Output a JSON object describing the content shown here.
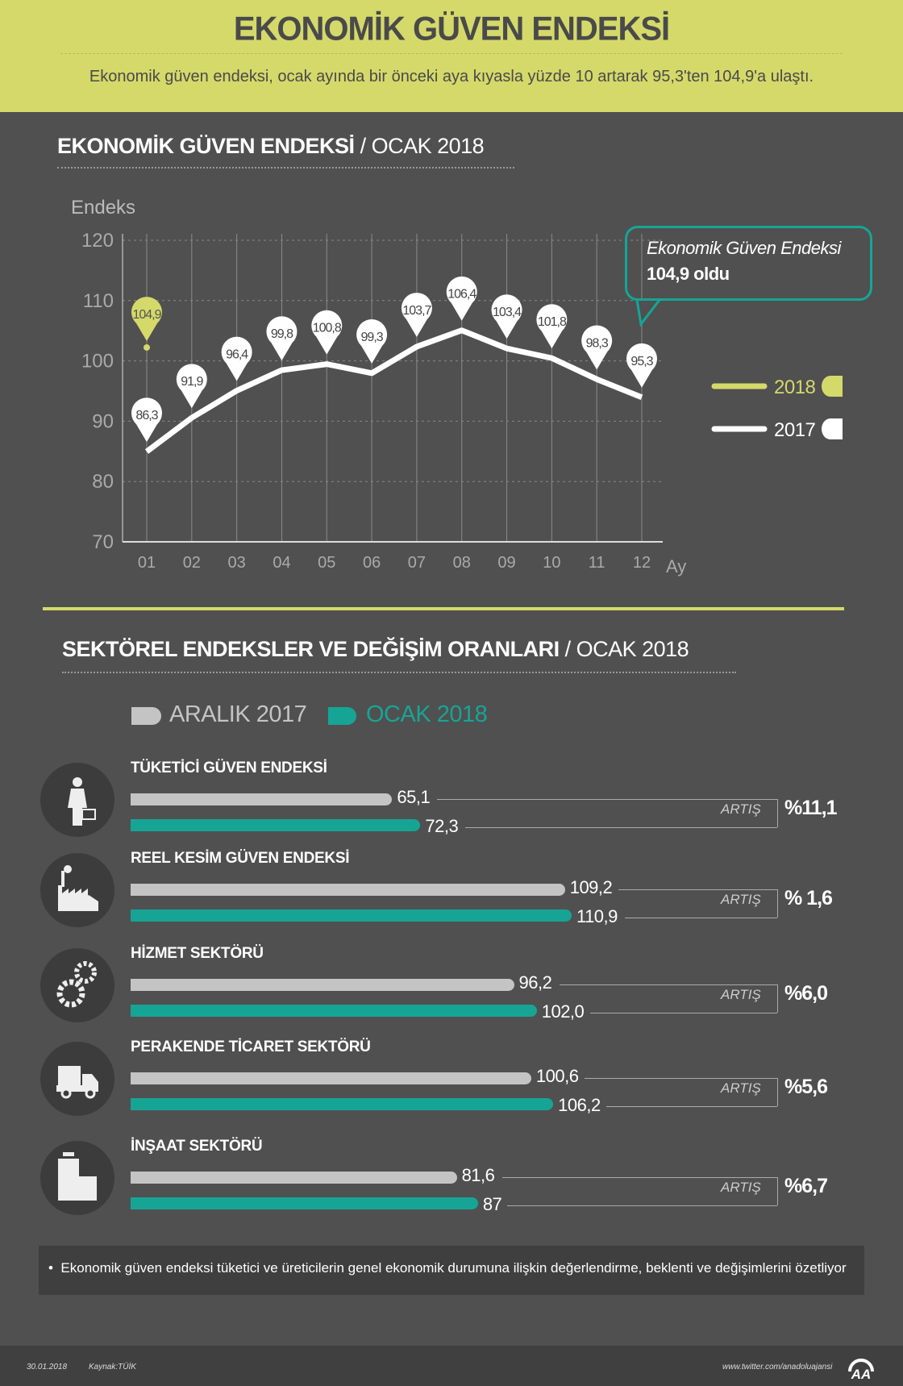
{
  "header": {
    "title": "EKONOMİK GÜVEN ENDEKSİ",
    "subtitle": "Ekonomik güven endeksi, ocak ayında bir önceki aya kıyasla yüzde 10 artarak 95,3'ten 104,9'a ulaştı."
  },
  "section1": {
    "title_bold": "EKONOMİK GÜVEN ENDEKSİ",
    "title_light": "/ OCAK 2018"
  },
  "callout": {
    "line1": "Ekonomik Güven Endeksi",
    "line2": "104,9 oldu"
  },
  "chart_data": [
    {
      "type": "line",
      "ylabel": "Endeks",
      "xlabel": "Ay",
      "ylim": [
        70,
        120
      ],
      "yticks": [
        "120",
        "110",
        "100",
        "90",
        "80",
        "70"
      ],
      "categories": [
        "01",
        "02",
        "03",
        "04",
        "05",
        "06",
        "07",
        "08",
        "09",
        "10",
        "11",
        "12"
      ],
      "series": [
        {
          "name": "2018",
          "color": "#d4d96a",
          "values": [
            104.9,
            null,
            null,
            null,
            null,
            null,
            null,
            null,
            null,
            null,
            null,
            null
          ],
          "labels": [
            "104,9"
          ]
        },
        {
          "name": "2017",
          "color": "#ffffff",
          "values": [
            86.3,
            91.9,
            96.4,
            99.8,
            100.8,
            99.3,
            103.7,
            106.4,
            103.4,
            101.8,
            98.3,
            95.3
          ],
          "labels": [
            "86,3",
            "91,9",
            "96,4",
            "99,8",
            "100,8",
            "99,3",
            "103,7",
            "106,4",
            "103,4",
            "101,8",
            "98,3",
            "95,3"
          ]
        }
      ],
      "grid": true,
      "legend": "right"
    },
    {
      "type": "bar",
      "orientation": "horizontal",
      "title_bold": "SEKTÖREL ENDEKSLER VE DEĞİŞİM ORANLARI",
      "title_light": "/ OCAK 2018",
      "series": [
        {
          "name": "ARALIK 2017",
          "color": "#c4c4c4"
        },
        {
          "name": "OCAK 2018",
          "color": "#16a595"
        }
      ],
      "rows": [
        {
          "name": "TÜKETİCİ GÜVEN ENDEKSİ",
          "icon": "woman-basket-icon",
          "dec": 65.1,
          "jan": 72.3,
          "dec_label": "65,1",
          "jan_label": "72,3",
          "change_label": "ARTIŞ",
          "change": "%11,1"
        },
        {
          "name": "REEL KESİM GÜVEN ENDEKSİ",
          "icon": "factory-icon",
          "dec": 109.2,
          "jan": 110.9,
          "dec_label": "109,2",
          "jan_label": "110,9",
          "change_label": "ARTIŞ",
          "change": "% 1,6"
        },
        {
          "name": "HİZMET SEKTÖRÜ",
          "icon": "gears-icon",
          "dec": 96.2,
          "jan": 102.0,
          "dec_label": "96,2",
          "jan_label": "102,0",
          "change_label": "ARTIŞ",
          "change": "%6,0"
        },
        {
          "name": "PERAKENDE TİCARET SEKTÖRÜ",
          "icon": "truck-icon",
          "dec": 100.6,
          "jan": 106.2,
          "dec_label": "100,6",
          "jan_label": "106,2",
          "change_label": "ARTIŞ",
          "change": "%5,6"
        },
        {
          "name": "İNŞAAT SEKTÖRÜ",
          "icon": "buildings-icon",
          "dec": 81.6,
          "jan": 87,
          "dec_label": "81,6",
          "jan_label": "87",
          "change_label": "ARTIŞ",
          "change": "%6,7"
        }
      ]
    }
  ],
  "note": "Ekonomik güven endeksi tüketici ve üreticilerin genel ekonomik durumuna ilişkin değerlendirme, beklenti ve değişimlerini özetliyor",
  "footer": {
    "date": "30.01.2018",
    "source": "Kaynak:TÜİK",
    "url": "www.twitter.com/anadoluajansi",
    "logo": "AA"
  },
  "colors": {
    "accent": "#d4d96a",
    "teal": "#16a595",
    "bg": "#505050"
  }
}
